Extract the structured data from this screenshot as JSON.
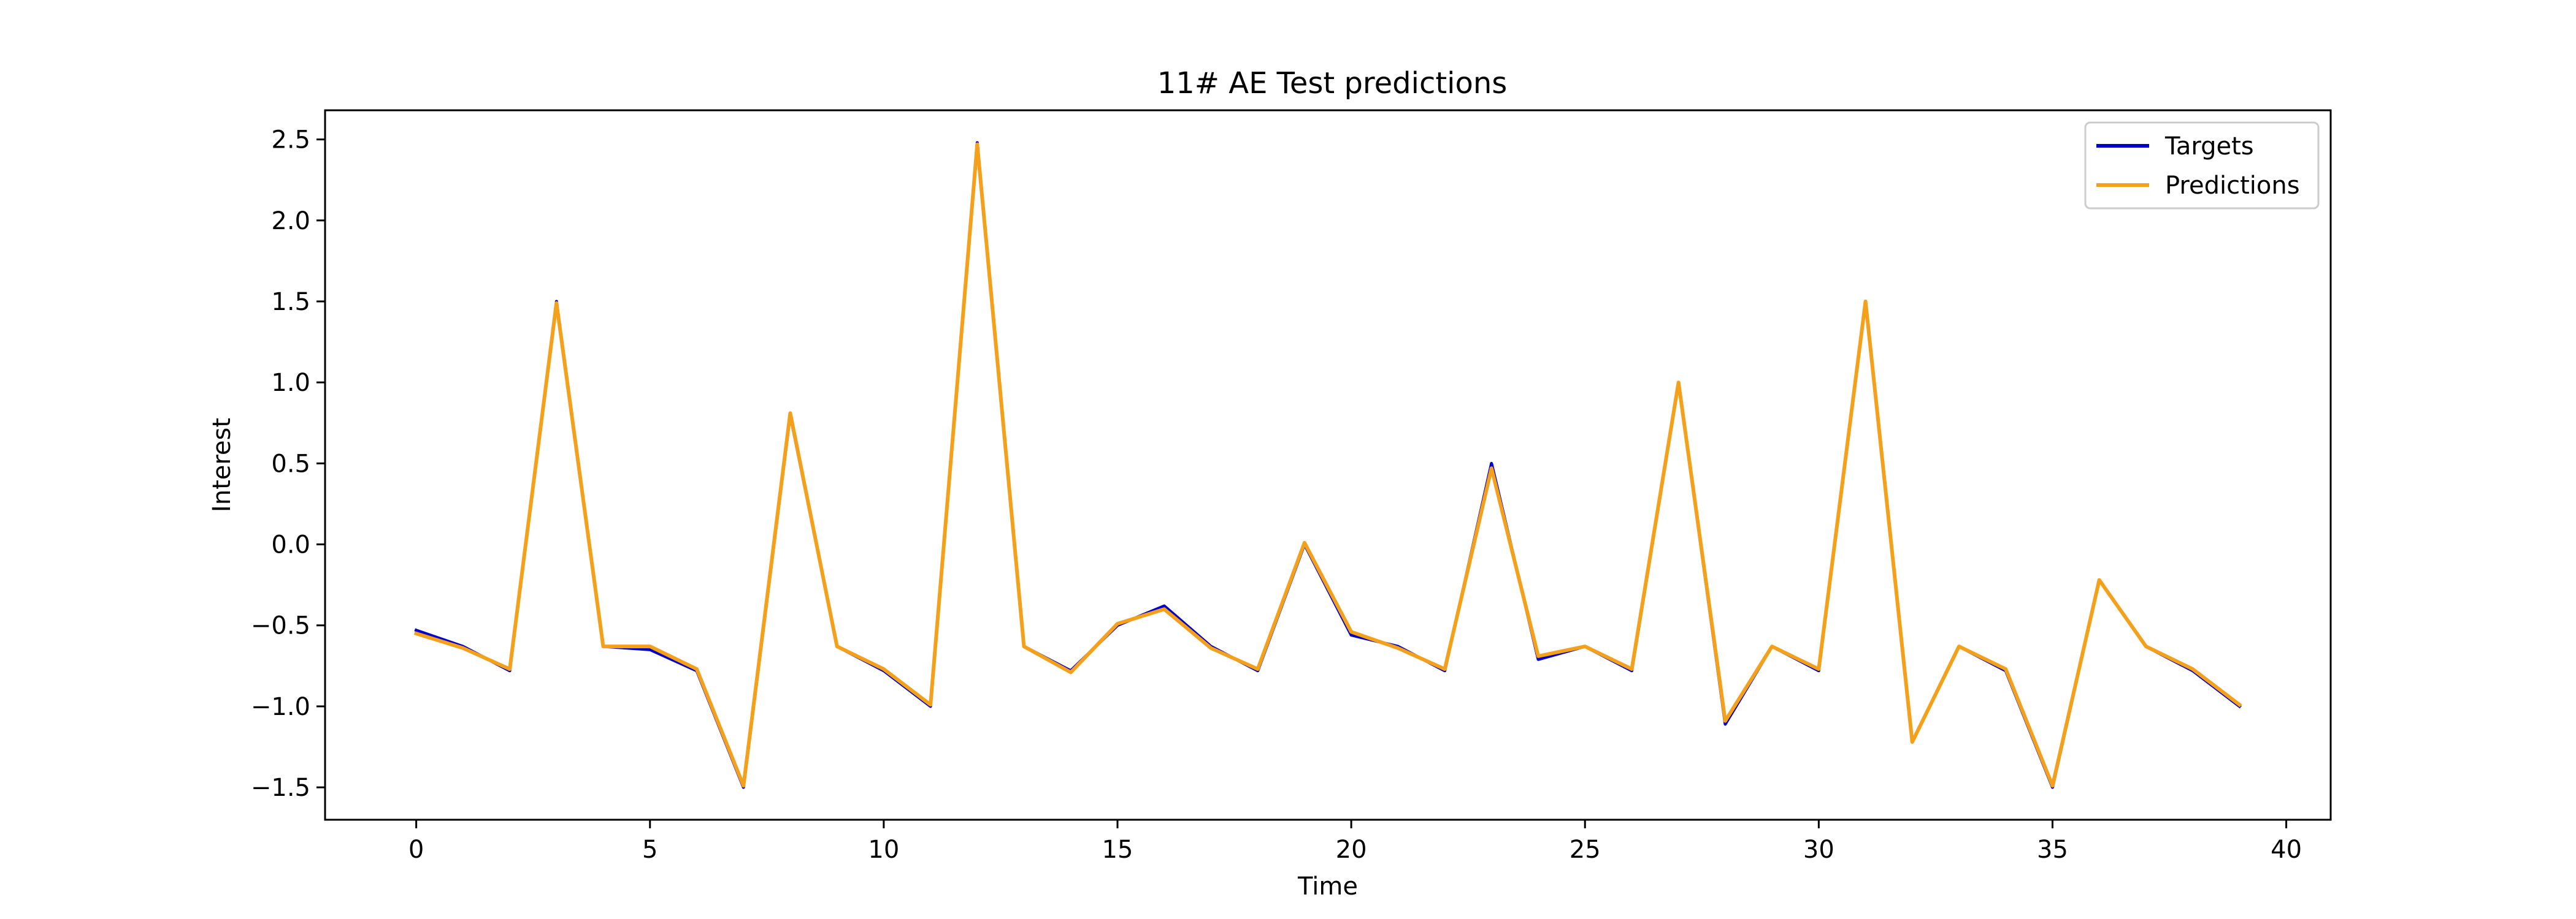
{
  "chart_data": {
    "type": "line",
    "title": "11# AE Test predictions",
    "xlabel": "Time",
    "ylabel": "Interest",
    "xlim": [
      -1.95,
      40.95
    ],
    "ylim": [
      -1.7,
      2.68
    ],
    "xticks": [
      0,
      5,
      10,
      15,
      20,
      25,
      30,
      35,
      40
    ],
    "xtick_labels": [
      "0",
      "5",
      "10",
      "15",
      "20",
      "25",
      "30",
      "35",
      "40"
    ],
    "yticks": [
      -1.5,
      -1.0,
      -0.5,
      0.0,
      0.5,
      1.0,
      1.5,
      2.0,
      2.5
    ],
    "ytick_labels": [
      "−1.5",
      "−1.0",
      "−0.5",
      "0.0",
      "0.5",
      "1.0",
      "1.5",
      "2.0",
      "2.5"
    ],
    "grid": false,
    "legend_position": "upper right",
    "x": [
      0,
      1,
      2,
      3,
      4,
      5,
      6,
      7,
      8,
      9,
      10,
      11,
      12,
      13,
      14,
      15,
      16,
      17,
      18,
      19,
      20,
      21,
      22,
      23,
      24,
      25,
      26,
      27,
      28,
      29,
      30,
      31,
      32,
      33,
      34,
      35,
      36,
      37,
      38,
      39
    ],
    "series": [
      {
        "name": "Targets",
        "color": "#0000cd",
        "values": [
          -0.53,
          -0.63,
          -0.78,
          1.5,
          -0.63,
          -0.65,
          -0.78,
          -1.5,
          0.8,
          -0.63,
          -0.78,
          -1.0,
          2.48,
          -0.63,
          -0.78,
          -0.5,
          -0.38,
          -0.63,
          -0.78,
          0.0,
          -0.56,
          -0.63,
          -0.78,
          0.5,
          -0.71,
          -0.63,
          -0.78,
          1.0,
          -1.11,
          -0.63,
          -0.78,
          1.5,
          -1.22,
          -0.63,
          -0.78,
          -1.5,
          -0.22,
          -0.63,
          -0.78,
          -1.0
        ]
      },
      {
        "name": "Predictions",
        "color": "#f5a01a",
        "values": [
          -0.55,
          -0.64,
          -0.77,
          1.49,
          -0.63,
          -0.63,
          -0.77,
          -1.49,
          0.81,
          -0.63,
          -0.77,
          -0.99,
          2.47,
          -0.63,
          -0.79,
          -0.49,
          -0.4,
          -0.64,
          -0.77,
          0.01,
          -0.54,
          -0.64,
          -0.77,
          0.47,
          -0.69,
          -0.63,
          -0.77,
          1.0,
          -1.09,
          -0.63,
          -0.77,
          1.5,
          -1.22,
          -0.63,
          -0.77,
          -1.49,
          -0.22,
          -0.63,
          -0.77,
          -0.99
        ]
      }
    ]
  }
}
